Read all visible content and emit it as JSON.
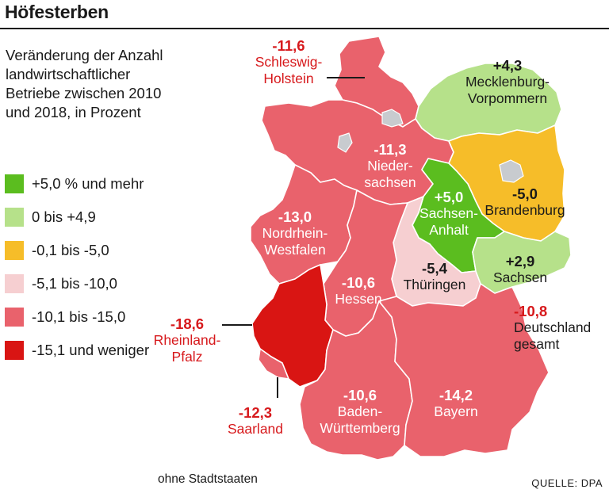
{
  "title": "Höfesterben",
  "subtitle": "Veränderung der Anzahl landwirtschaftlicher Betriebe zwischen 2010 und 2018, in Prozent",
  "legend": [
    {
      "label": "+5,0 % und mehr",
      "color": "#5bbd1f"
    },
    {
      "label": "0 bis +4,9",
      "color": "#b6e18a"
    },
    {
      "label": "-0,1 bis -5,0",
      "color": "#f6bd29"
    },
    {
      "label": "-5,1 bis -10,0",
      "color": "#f6cfd1"
    },
    {
      "label": "-10,1 bis -15,0",
      "color": "#e9626c"
    },
    {
      "label": "-15,1 und weniger",
      "color": "#d91513"
    }
  ],
  "states": {
    "sh": {
      "value": "-11,6",
      "name": "Schleswig-Holstein",
      "color": "#e9626c"
    },
    "mv": {
      "value": "+4,3",
      "name": "Mecklenburg-Vorpommern",
      "color": "#b6e18a"
    },
    "ni": {
      "value": "-11,3",
      "name": "Nieder-sachsen",
      "color": "#e9626c"
    },
    "bb": {
      "value": "-5,0",
      "name": "Brandenburg",
      "color": "#f6bd29"
    },
    "st": {
      "value": "+5,0",
      "name": "Sachsen-Anhalt",
      "color": "#5bbd1f"
    },
    "nw": {
      "value": "-13,0",
      "name": "Nordrhein-Westfalen",
      "color": "#e9626c"
    },
    "th": {
      "value": "-5,4",
      "name": "Thüringen",
      "color": "#f6cfd1"
    },
    "sn": {
      "value": "+2,9",
      "name": "Sachsen",
      "color": "#b6e18a"
    },
    "he": {
      "value": "-10,6",
      "name": "Hessen",
      "color": "#e9626c"
    },
    "rp": {
      "value": "-18,6",
      "name": "Rheinland-Pfalz",
      "color": "#d91513"
    },
    "sl": {
      "value": "-12,3",
      "name": "Saarland",
      "color": "#e9626c"
    },
    "bw": {
      "value": "-10,6",
      "name": "Baden-Württemberg",
      "color": "#e9626c"
    },
    "by": {
      "value": "-14,2",
      "name": "Bayern",
      "color": "#e9626c"
    }
  },
  "germany": {
    "value": "-10,8",
    "name": "Deutschland gesamt"
  },
  "note": "ohne Stadtstaaten",
  "source": "QUELLE: DPA",
  "colors": {
    "label_red": "#d7191c",
    "city_states": "#c8cbcf"
  }
}
